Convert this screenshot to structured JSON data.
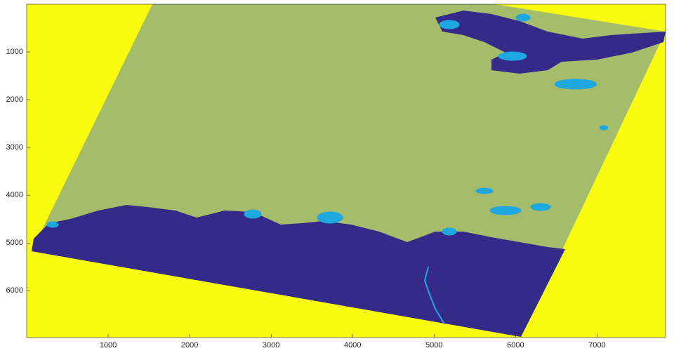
{
  "chart_data": {
    "type": "image",
    "xlim": [
      0,
      7841
    ],
    "ylim": [
      0,
      6981
    ],
    "ydir": "reverse",
    "xticks": [
      1000,
      2000,
      3000,
      4000,
      5000,
      6000,
      7000
    ],
    "yticks": [
      1000,
      2000,
      3000,
      4000,
      5000,
      6000
    ],
    "colors": [
      "#f9fb0e",
      "#a5bd6a",
      "#352a87",
      "#1ea8df"
    ]
  }
}
